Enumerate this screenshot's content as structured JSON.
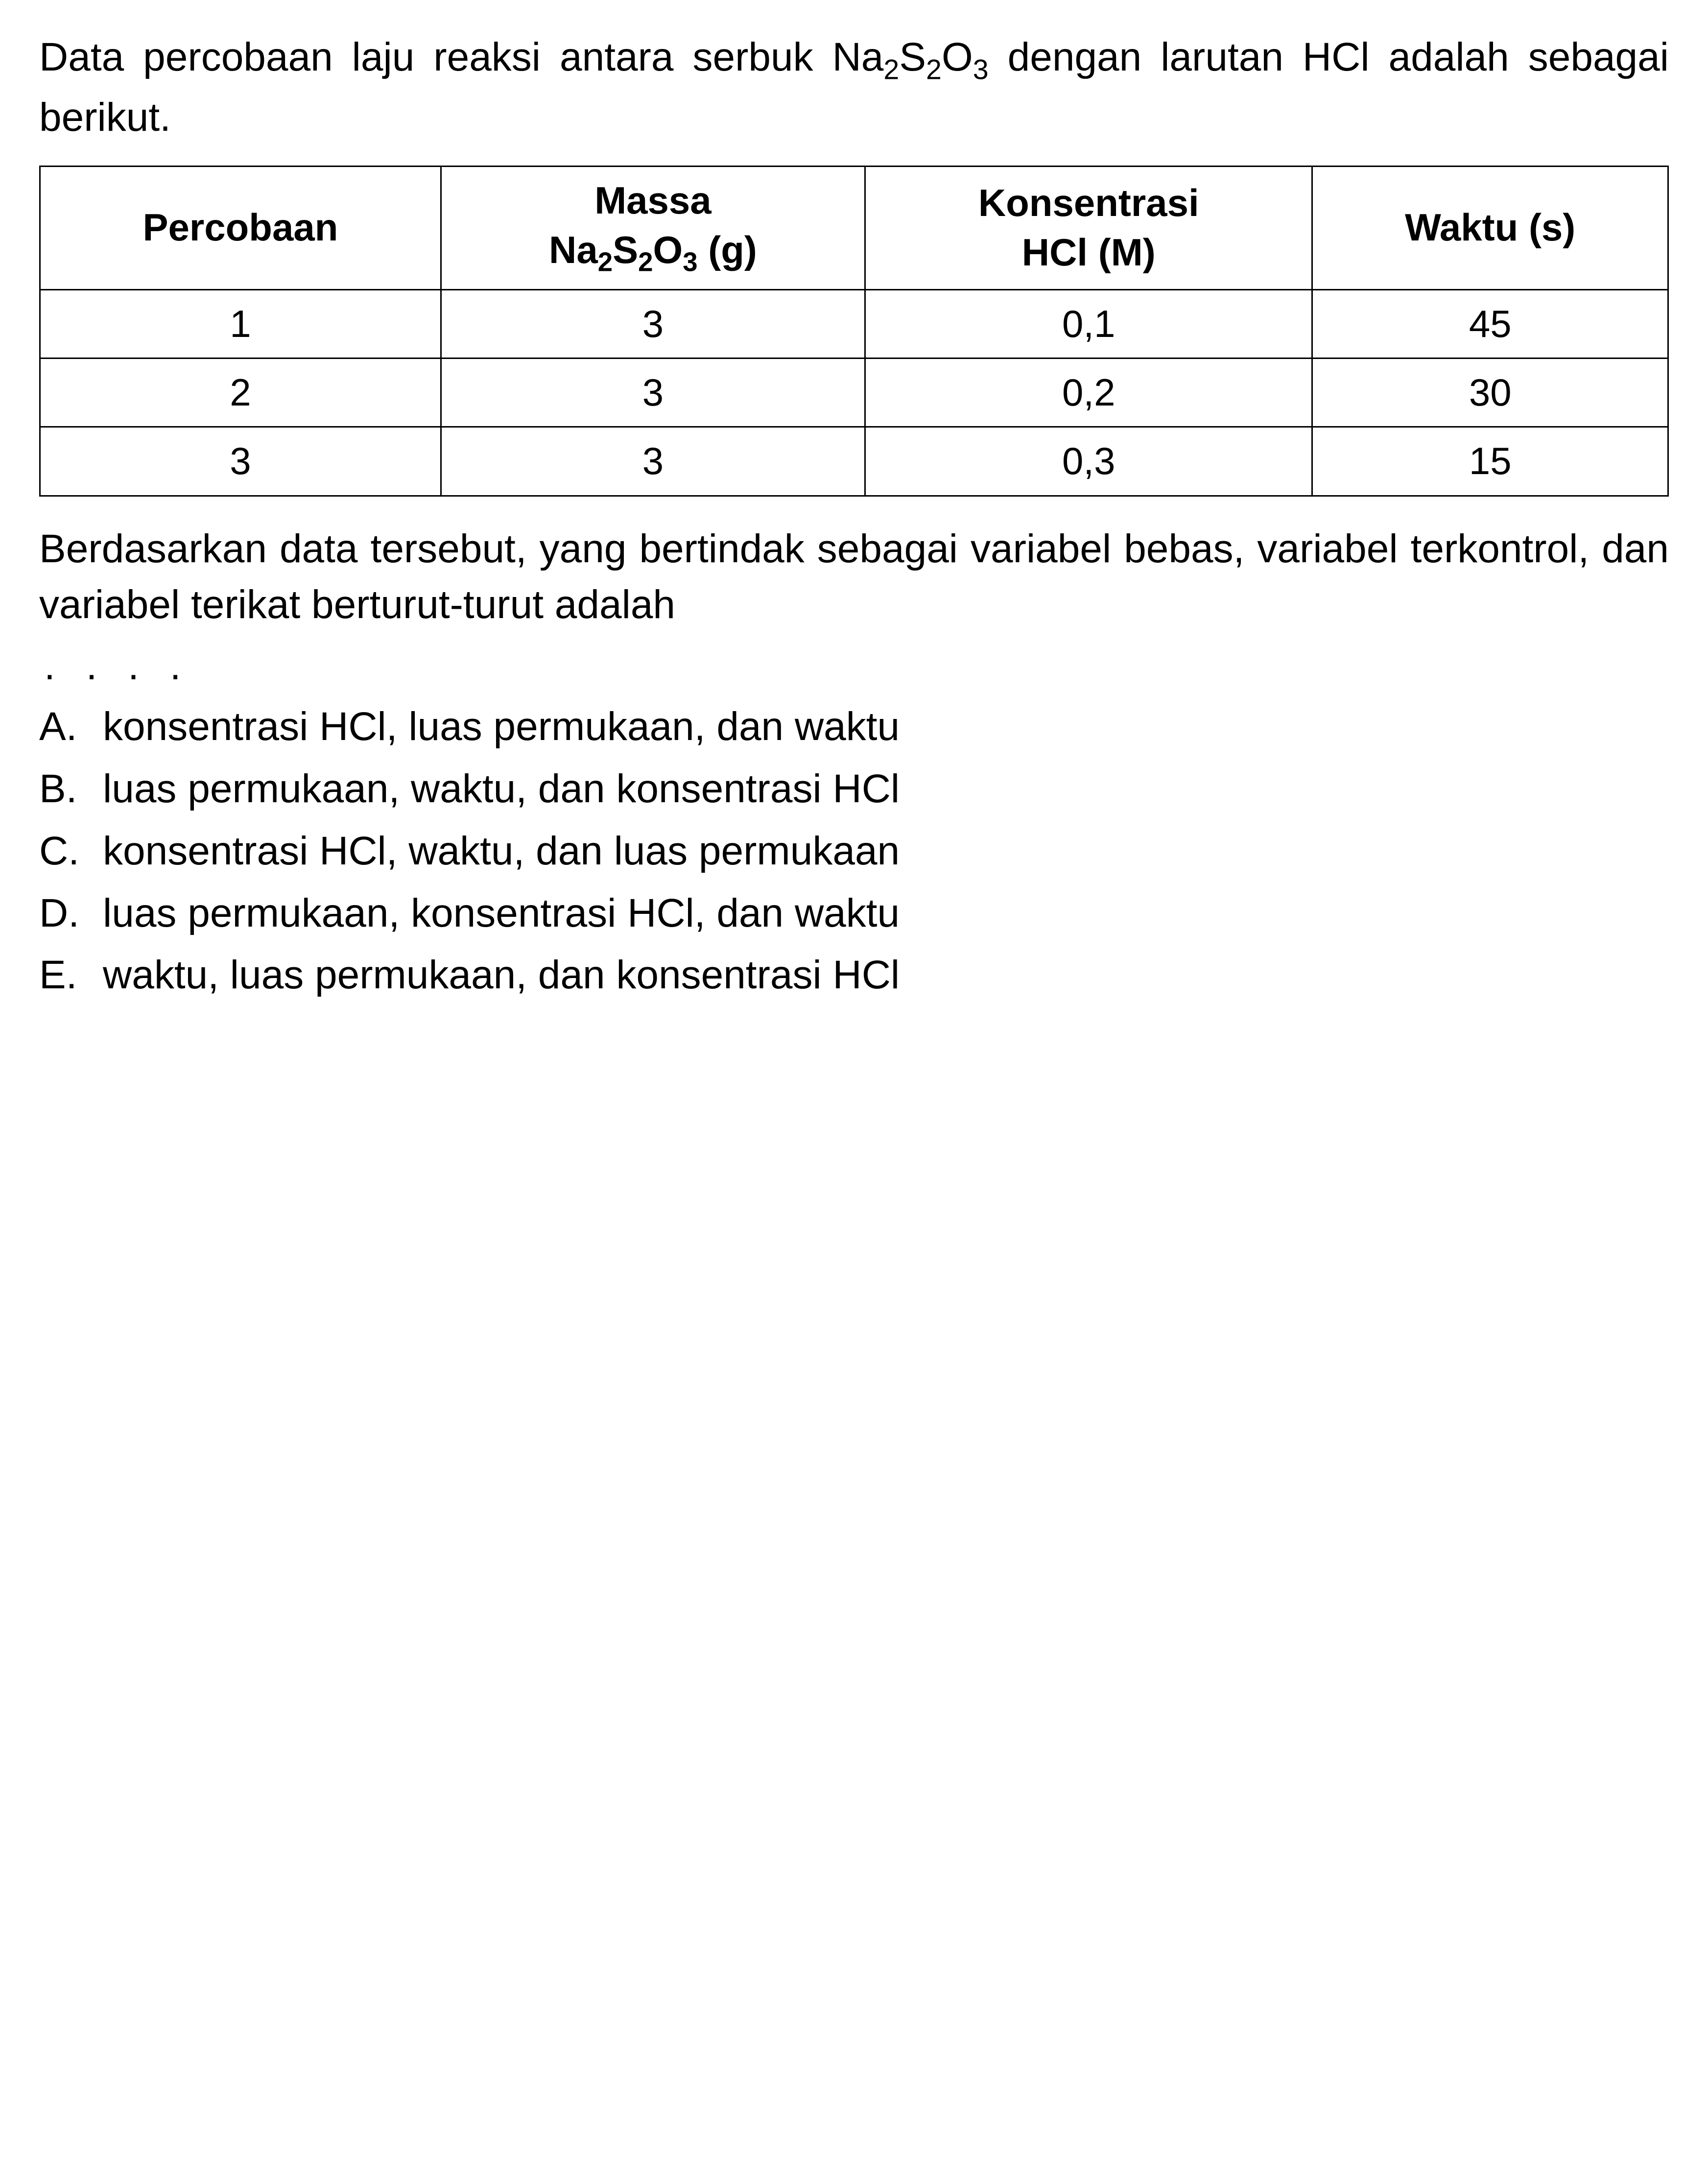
{
  "intro": {
    "line1_prefix": "Data percobaan laju reaksi antara serbuk",
    "compound1_base1": "Na",
    "compound1_sub1": "2",
    "compound1_base2": "S",
    "compound1_sub2": "2",
    "compound1_base3": "O",
    "compound1_sub3": "3",
    "line2_middle": " dengan larutan HCl adalah sebagai berikut."
  },
  "table": {
    "headers": {
      "col1": "Percobaan",
      "col2_line1": "Massa",
      "col2_compound_base1": "Na",
      "col2_compound_sub1": "2",
      "col2_compound_base2": "S",
      "col2_compound_sub2": "2",
      "col2_compound_base3": "O",
      "col2_compound_sub3": "3",
      "col2_unit": " (g)",
      "col3_line1": "Konsentrasi",
      "col3_line2": "HCl (M)",
      "col4": "Waktu (s)"
    },
    "rows": [
      {
        "c1": "1",
        "c2": "3",
        "c3": "0,1",
        "c4": "45"
      },
      {
        "c1": "2",
        "c2": "3",
        "c3": "0,2",
        "c4": "30"
      },
      {
        "c1": "3",
        "c2": "3",
        "c3": "0,3",
        "c4": "15"
      }
    ],
    "border_color": "#000000",
    "background_color": "#ffffff",
    "header_fontsize": 78,
    "cell_fontsize": 78
  },
  "question": "Berdasarkan data tersebut, yang bertindak sebagai variabel bebas, variabel terkontrol, dan variabel terikat berturut-turut adalah",
  "dots": ". . . .",
  "options": [
    {
      "letter": "A.",
      "text": "konsentrasi HCl, luas permukaan, dan waktu"
    },
    {
      "letter": "B.",
      "text": "luas permukaan, waktu, dan konsentrasi HCl"
    },
    {
      "letter": "C.",
      "text": "konsentrasi HCl, waktu, dan luas permukaan"
    },
    {
      "letter": "D.",
      "text": "luas permukaan, konsentrasi HCl, dan waktu"
    },
    {
      "letter": "E.",
      "text": "waktu, luas permukaan, dan konsentrasi HCl"
    }
  ],
  "styling": {
    "body_background": "#ffffff",
    "text_color": "#000000",
    "body_fontsize": 82,
    "font_family": "Arial, Helvetica, sans-serif"
  }
}
